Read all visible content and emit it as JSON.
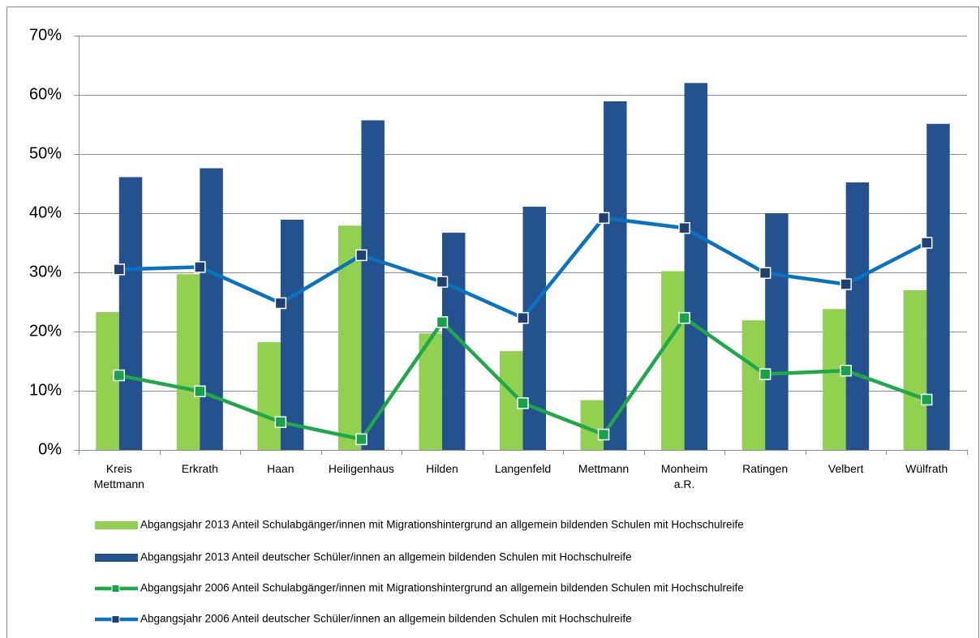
{
  "chart_data": {
    "type": "bar_line",
    "categories": [
      "Kreis Mettmann",
      "Erkrath",
      "Haan",
      "Heiligenhaus",
      "Hilden",
      "Langenfeld",
      "Mettmann",
      "Monheim a.R.",
      "Ratingen",
      "Velbert",
      "Wülfrath"
    ],
    "series": [
      {
        "name": "Abgangsjahr 2013 Anteil Schulabgänger/innen mit Migrationshintergrund an allgemein bildenden Schulen mit Hochschulreife",
        "type": "bar",
        "color": "#92d050",
        "values": [
          23.3,
          29.7,
          18.2,
          37.9,
          19.7,
          16.7,
          8.4,
          30.2,
          21.9,
          23.8,
          27.0
        ]
      },
      {
        "name": "Abgangsjahr 2013 Anteil deutscher Schüler/innen an allgemein bildenden Schulen mit Hochschulreife",
        "type": "bar",
        "color": "#23528e",
        "values": [
          46.1,
          47.6,
          38.9,
          55.7,
          36.7,
          41.1,
          58.9,
          62.0,
          40.0,
          45.2,
          55.1
        ]
      },
      {
        "name": "Abgangsjahr 2006 Anteil Schulabgänger/innen mit Migrationshintergrund an allgemein bildenden Schulen mit Hochschulreife",
        "type": "line",
        "color": "#1fa84a",
        "marker_color": "#17a34a",
        "values": [
          12.6,
          9.9,
          4.7,
          1.8,
          21.6,
          7.9,
          2.6,
          22.3,
          12.8,
          13.4,
          8.5
        ]
      },
      {
        "name": "Abgangsjahr 2006 Anteil deutscher Schüler/innen an allgemein bildenden Schulen mit Hochschulreife",
        "type": "line",
        "color": "#0a72c2",
        "marker_color": "#1f3f75",
        "values": [
          30.5,
          30.9,
          24.8,
          32.9,
          28.4,
          22.3,
          39.2,
          37.5,
          29.9,
          28.0,
          35.0
        ]
      }
    ],
    "ylim": [
      0,
      70
    ],
    "yticks": [
      {
        "value": 0,
        "label": "0%"
      },
      {
        "value": 10,
        "label": "10%"
      },
      {
        "value": 20,
        "label": "20%"
      },
      {
        "value": 30,
        "label": "30%"
      },
      {
        "value": 40,
        "label": "40%"
      },
      {
        "value": 50,
        "label": "50%"
      },
      {
        "value": 60,
        "label": "60%"
      },
      {
        "value": 70,
        "label": "70%"
      }
    ],
    "grid": true,
    "legend": "bottom"
  }
}
